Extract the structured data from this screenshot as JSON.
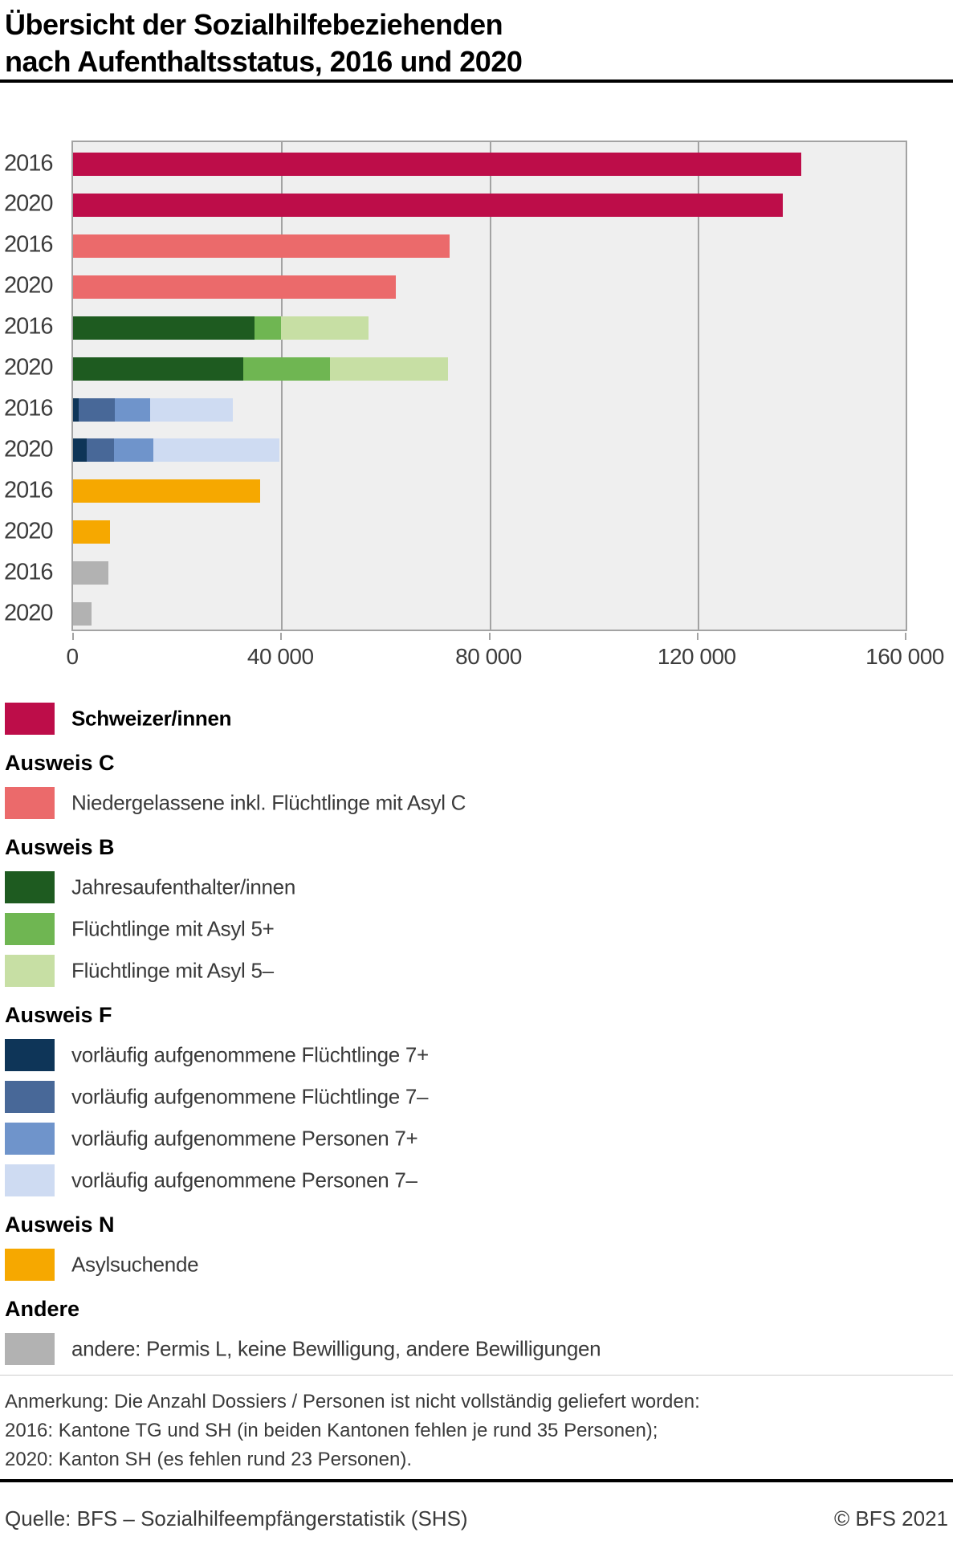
{
  "title": {
    "line1": "Übersicht der Sozialhilfebeziehenden",
    "line2": "nach Aufenthaltsstatus, 2016 und 2020"
  },
  "chart_data": {
    "type": "bar",
    "orientation": "horizontal",
    "stacked": true,
    "title": "Übersicht der Sozialhilfebeziehenden nach Aufenthaltsstatus, 2016 und 2020",
    "x_axis": {
      "max": 160000,
      "ticks": [
        0,
        40000,
        80000,
        120000,
        160000
      ],
      "tick_labels": [
        "0",
        "40 000",
        "80 000",
        "120 000",
        "160 000"
      ]
    },
    "plot_background": "#efefef",
    "grid_color": "#a3a3a3",
    "grid_on": true,
    "series_colors": {
      "schweizer": "#bd0d49",
      "niedergelassene": "#eb6a6b",
      "jahresaufenthalter": "#1e5b20",
      "fluechtlinge_asyl_5plus": "#6fb652",
      "fluechtlinge_asyl_5minus": "#c7dfa4",
      "va_fluechtlinge_7plus": "#0e3558",
      "va_fluechtlinge_7minus": "#486898",
      "va_personen_7plus": "#6f94cb",
      "va_personen_7minus": "#cedbf2",
      "asylsuchende": "#f6a800",
      "andere": "#b2b2b2"
    },
    "rows": [
      {
        "group": "Schweizer/innen",
        "year": "2016",
        "segments": [
          {
            "series": "schweizer",
            "value": 140000
          }
        ]
      },
      {
        "group": "Schweizer/innen",
        "year": "2020",
        "segments": [
          {
            "series": "schweizer",
            "value": 136400
          }
        ]
      },
      {
        "group": "Ausweis C",
        "year": "2016",
        "segments": [
          {
            "series": "niedergelassene",
            "value": 72400
          }
        ]
      },
      {
        "group": "Ausweis C",
        "year": "2020",
        "segments": [
          {
            "series": "niedergelassene",
            "value": 62100
          }
        ]
      },
      {
        "group": "Ausweis B",
        "year": "2016",
        "segments": [
          {
            "series": "jahresaufenthalter",
            "value": 34800
          },
          {
            "series": "fluechtlinge_asyl_5plus",
            "value": 5100
          },
          {
            "series": "fluechtlinge_asyl_5minus",
            "value": 16900
          }
        ]
      },
      {
        "group": "Ausweis B",
        "year": "2020",
        "segments": [
          {
            "series": "jahresaufenthalter",
            "value": 32700
          },
          {
            "series": "fluechtlinge_asyl_5plus",
            "value": 16600
          },
          {
            "series": "fluechtlinge_asyl_5minus",
            "value": 22700
          }
        ]
      },
      {
        "group": "Ausweis F",
        "year": "2016",
        "segments": [
          {
            "series": "va_fluechtlinge_7plus",
            "value": 1100
          },
          {
            "series": "va_fluechtlinge_7minus",
            "value": 6900
          },
          {
            "series": "va_personen_7plus",
            "value": 6800
          },
          {
            "series": "va_personen_7minus",
            "value": 15900
          }
        ]
      },
      {
        "group": "Ausweis F",
        "year": "2020",
        "segments": [
          {
            "series": "va_fluechtlinge_7plus",
            "value": 2600
          },
          {
            "series": "va_fluechtlinge_7minus",
            "value": 5300
          },
          {
            "series": "va_personen_7plus",
            "value": 7500
          },
          {
            "series": "va_personen_7minus",
            "value": 24200
          }
        ]
      },
      {
        "group": "Ausweis N",
        "year": "2016",
        "segments": [
          {
            "series": "asylsuchende",
            "value": 35900
          }
        ]
      },
      {
        "group": "Ausweis N",
        "year": "2020",
        "segments": [
          {
            "series": "asylsuchende",
            "value": 7100
          }
        ]
      },
      {
        "group": "Andere",
        "year": "2016",
        "segments": [
          {
            "series": "andere",
            "value": 6800
          }
        ]
      },
      {
        "group": "Andere",
        "year": "2020",
        "segments": [
          {
            "series": "andere",
            "value": 3500
          }
        ]
      }
    ]
  },
  "legend": {
    "entries": [
      {
        "type": "item",
        "series": "schweizer",
        "label": "Schweizer/innen",
        "bold": true
      },
      {
        "type": "heading",
        "label": "Ausweis C"
      },
      {
        "type": "item",
        "series": "niedergelassene",
        "label": "Niedergelassene inkl. Flüchtlinge mit Asyl C"
      },
      {
        "type": "heading",
        "label": "Ausweis B"
      },
      {
        "type": "item",
        "series": "jahresaufenthalter",
        "label": "Jahresaufenthalter/innen"
      },
      {
        "type": "item",
        "series": "fluechtlinge_asyl_5plus",
        "label": "Flüchtlinge mit Asyl 5+"
      },
      {
        "type": "item",
        "series": "fluechtlinge_asyl_5minus",
        "label": "Flüchtlinge mit Asyl 5–"
      },
      {
        "type": "heading",
        "label": "Ausweis F"
      },
      {
        "type": "item",
        "series": "va_fluechtlinge_7plus",
        "label": "vorläufig aufgenommene Flüchtlinge 7+"
      },
      {
        "type": "item",
        "series": "va_fluechtlinge_7minus",
        "label": "vorläufig aufgenommene Flüchtlinge 7–"
      },
      {
        "type": "item",
        "series": "va_personen_7plus",
        "label": "vorläufig aufgenommene Personen 7+"
      },
      {
        "type": "item",
        "series": "va_personen_7minus",
        "label": "vorläufig aufgenommene Personen 7–"
      },
      {
        "type": "heading",
        "label": "Ausweis N"
      },
      {
        "type": "item",
        "series": "asylsuchende",
        "label": "Asylsuchende"
      },
      {
        "type": "heading",
        "label": "Andere"
      },
      {
        "type": "item",
        "series": "andere",
        "label": "andere: Permis L, keine Bewilligung, andere Bewilligungen"
      }
    ]
  },
  "note": {
    "line1": "Anmerkung: Die Anzahl Dossiers / Personen ist nicht vollständig geliefert worden:",
    "line2": "2016: Kantone TG und SH (in beiden Kantonen fehlen je rund 35 Personen);",
    "line3": "2020: Kanton SH (es fehlen rund 23 Personen)."
  },
  "footer": {
    "source": "Quelle: BFS – Sozialhilfeempfängerstatistik (SHS)",
    "copyright": "© BFS 2021"
  }
}
